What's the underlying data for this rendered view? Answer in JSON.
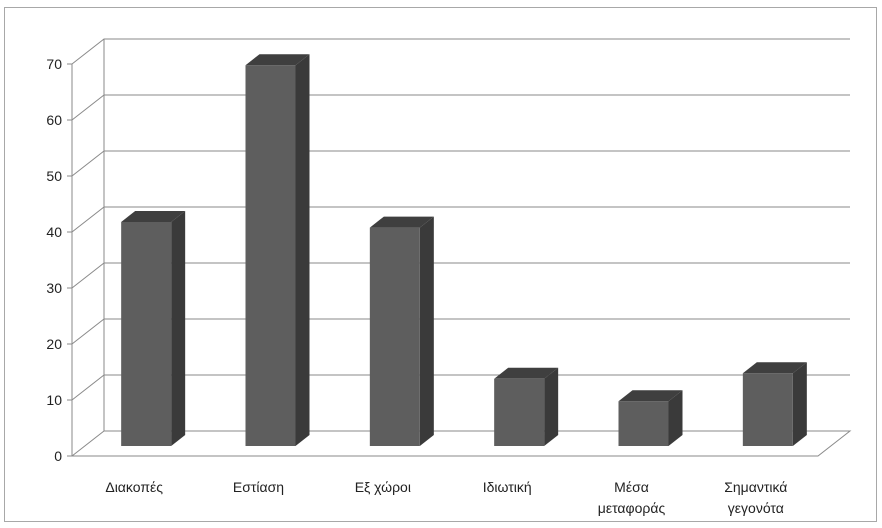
{
  "chart_data": {
    "type": "bar",
    "categories": [
      [
        "Διακοπές"
      ],
      [
        "Εστίαση"
      ],
      [
        "Εξ χώροι"
      ],
      [
        "Ιδιωτική"
      ],
      [
        "Μέσα",
        "μεταφοράς"
      ],
      [
        "Σημαντικά",
        "γεγονότα"
      ]
    ],
    "values": [
      40,
      68,
      39,
      12,
      8,
      13
    ],
    "ylim": [
      0,
      70
    ],
    "yticks": [
      0,
      10,
      20,
      30,
      40,
      50,
      60,
      70
    ],
    "grid": true,
    "style": "3d-column",
    "colors": {
      "bar_front": "#5e5e5e",
      "bar_top": "#3f3f3f",
      "bar_side": "#3a3a3a",
      "gridline": "#8a8a8a",
      "floor": "#ffffff"
    }
  }
}
